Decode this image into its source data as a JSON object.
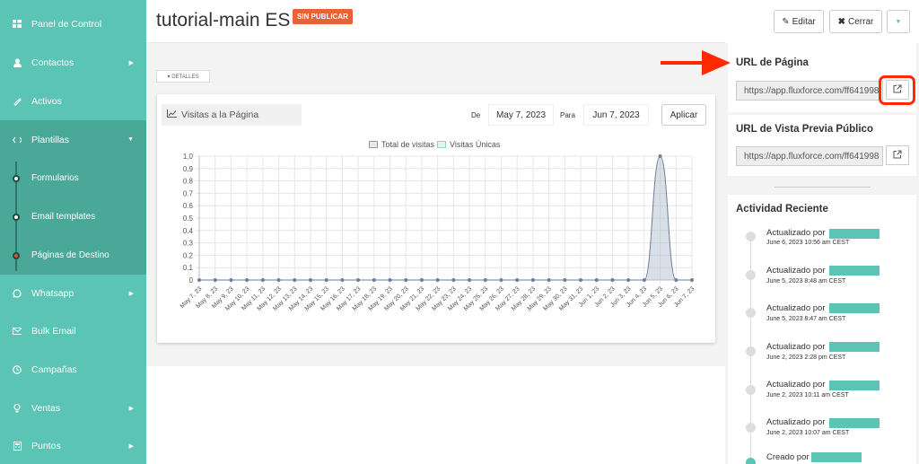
{
  "sidebar": {
    "items": [
      {
        "label": "Panel de Control",
        "icon": "dashboard-icon",
        "chevron": ""
      },
      {
        "label": "Contactos",
        "icon": "user-icon",
        "chevron": "▶"
      },
      {
        "label": "Activos",
        "icon": "paperclip-icon",
        "chevron": ""
      },
      {
        "label": "Plantillas",
        "icon": "code-icon",
        "chevron": "▼"
      },
      {
        "label": "Whatsapp",
        "icon": "whatsapp-icon",
        "chevron": "▶"
      },
      {
        "label": "Bulk Email",
        "icon": "envelope-icon",
        "chevron": ""
      },
      {
        "label": "Campañas",
        "icon": "clock-icon",
        "chevron": ""
      },
      {
        "label": "Ventas",
        "icon": "lightbulb-icon",
        "chevron": "▶"
      },
      {
        "label": "Puntos",
        "icon": "calculator-icon",
        "chevron": "▶"
      }
    ],
    "sub_items": [
      {
        "label": "Formularios"
      },
      {
        "label": "Email templates"
      },
      {
        "label": "Páginas de Destino"
      }
    ]
  },
  "header": {
    "title": "tutorial-main ES",
    "badge": "SIN PUBLICAR",
    "edit_label": "Editar",
    "close_label": "Cerrar"
  },
  "main": {
    "details_tab": "▾ DETALLES",
    "card_title": "Visitas a la Página",
    "from_label": "De",
    "from_date": "May 7, 2023",
    "to_label": "Para",
    "to_date": "Jun 7, 2023",
    "apply_label": "Aplicar"
  },
  "chart_data": {
    "type": "area",
    "legend": [
      "Total de visitas",
      "Visitas Únicas"
    ],
    "categories": [
      "May 7, 23",
      "May 8, 23",
      "May 9, 23",
      "May 10, 23",
      "May 11, 23",
      "May 12, 23",
      "May 13, 23",
      "May 14, 23",
      "May 15, 23",
      "May 16, 23",
      "May 17, 23",
      "May 18, 23",
      "May 19, 23",
      "May 20, 23",
      "May 21, 23",
      "May 22, 23",
      "May 23, 23",
      "May 24, 23",
      "May 25, 23",
      "May 26, 23",
      "May 27, 23",
      "May 28, 23",
      "May 29, 23",
      "May 30, 23",
      "May 31, 23",
      "Jun 1, 23",
      "Jun 2, 23",
      "Jun 3, 23",
      "Jun 4, 23",
      "Jun 5, 23",
      "Jun 6, 23",
      "Jun 7, 23"
    ],
    "series": [
      {
        "name": "Total de visitas",
        "values": [
          0,
          0,
          0,
          0,
          0,
          0,
          0,
          0,
          0,
          0,
          0,
          0,
          0,
          0,
          0,
          0,
          0,
          0,
          0,
          0,
          0,
          0,
          0,
          0,
          0,
          0,
          0,
          0,
          0,
          1,
          0,
          0
        ]
      },
      {
        "name": "Visitas Únicas",
        "values": [
          0,
          0,
          0,
          0,
          0,
          0,
          0,
          0,
          0,
          0,
          0,
          0,
          0,
          0,
          0,
          0,
          0,
          0,
          0,
          0,
          0,
          0,
          0,
          0,
          0,
          0,
          0,
          0,
          0,
          0,
          0,
          0
        ]
      }
    ],
    "ylim": [
      0,
      1.0
    ],
    "yticks": [
      "0",
      "0.1",
      "0.2",
      "0.3",
      "0.4",
      "0.5",
      "0.6",
      "0.7",
      "0.8",
      "0.9",
      "1.0"
    ],
    "colors": {
      "total": "#aab8c8",
      "unique": "#b9e6de"
    }
  },
  "right": {
    "page_url_title": "URL de Página",
    "page_url": "https://app.fluxforce.com/ff641998",
    "preview_url_title": "URL de Vista Previa Público",
    "preview_url": "https://app.fluxforce.com/ff641998",
    "activity_title": "Actividad Reciente",
    "activities": [
      {
        "by": "Actualizado por",
        "time": "June 6, 2023 10:56 am CEST"
      },
      {
        "by": "Actualizado por",
        "time": "June 5, 2023 8:48 am CEST"
      },
      {
        "by": "Actualizado por",
        "time": "June 5, 2023 8:47 am CEST"
      },
      {
        "by": "Actualizado por",
        "time": "June 2, 2023 2:28 pm CEST"
      },
      {
        "by": "Actualizado por",
        "time": "June 2, 2023 10:11 am CEST"
      },
      {
        "by": "Actualizado por",
        "time": "June 2, 2023 10:07 am CEST"
      },
      {
        "by": "Creado por",
        "time": ""
      }
    ]
  },
  "colors": {
    "sidebar": "#5bc4b4",
    "badge": "#e8613a",
    "highlight": "#ff2a00"
  }
}
